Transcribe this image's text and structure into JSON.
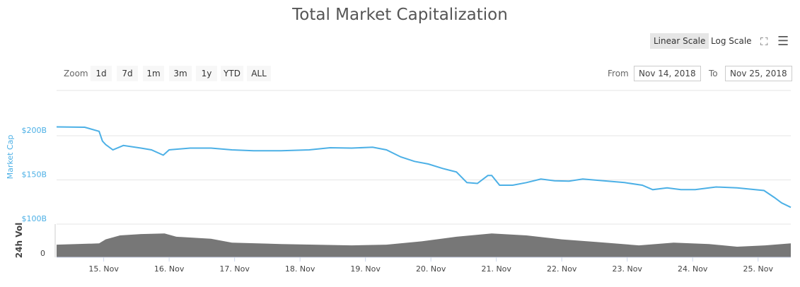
{
  "header": {
    "title": "Total Market Capitalization",
    "linear_scale": "Linear Scale",
    "log_scale": "Log Scale"
  },
  "zoom": {
    "label": "Zoom",
    "buttons": [
      "1d",
      "7d",
      "1m",
      "3m",
      "1y",
      "YTD",
      "ALL"
    ]
  },
  "range": {
    "from_label": "From",
    "from_value": "Nov 14, 2018",
    "to_label": "To",
    "to_value": "Nov 25, 2018"
  },
  "colors": {
    "line": "#4cb0e6",
    "volume": "#777777",
    "grid": "#e6e6e6"
  },
  "chart_data": {
    "type": "line",
    "title": "Total Market Capitalization",
    "ylabel": "Market Cap",
    "ylabel2": "24h Vol",
    "xlim": [
      14.28,
      25.5
    ],
    "ylim": [
      100,
      220
    ],
    "yticks": [
      {
        "v": 100,
        "label": "$100B"
      },
      {
        "v": 150,
        "label": "$150B"
      },
      {
        "v": 200,
        "label": "$200B"
      }
    ],
    "vol_tick": "0",
    "xticks": [
      {
        "v": 15,
        "label": "15. Nov"
      },
      {
        "v": 16,
        "label": "16. Nov"
      },
      {
        "v": 17,
        "label": "17. Nov"
      },
      {
        "v": 18,
        "label": "18. Nov"
      },
      {
        "v": 19,
        "label": "19. Nov"
      },
      {
        "v": 20,
        "label": "20. Nov"
      },
      {
        "v": 21,
        "label": "21. Nov"
      },
      {
        "v": 22,
        "label": "22. Nov"
      },
      {
        "v": 23,
        "label": "23. Nov"
      },
      {
        "v": 24,
        "label": "24. Nov"
      },
      {
        "v": 25,
        "label": "25. Nov"
      }
    ],
    "market_cap": [
      [
        14.28,
        210
      ],
      [
        14.71,
        209.6
      ],
      [
        14.93,
        205
      ],
      [
        14.98,
        194
      ],
      [
        15.03,
        190
      ],
      [
        15.14,
        184
      ],
      [
        15.3,
        189
      ],
      [
        15.57,
        186
      ],
      [
        15.73,
        184
      ],
      [
        15.91,
        178
      ],
      [
        16,
        184
      ],
      [
        16.32,
        186
      ],
      [
        16.64,
        186
      ],
      [
        16.96,
        184
      ],
      [
        17.29,
        183
      ],
      [
        17.71,
        183
      ],
      [
        18.14,
        184
      ],
      [
        18.46,
        186.4
      ],
      [
        18.79,
        186
      ],
      [
        19.11,
        187
      ],
      [
        19.32,
        184
      ],
      [
        19.54,
        176
      ],
      [
        19.75,
        171
      ],
      [
        19.96,
        168
      ],
      [
        20.18,
        163
      ],
      [
        20.39,
        159
      ],
      [
        20.55,
        147
      ],
      [
        20.71,
        146
      ],
      [
        20.87,
        155
      ],
      [
        20.93,
        155
      ],
      [
        21.05,
        144
      ],
      [
        21.25,
        144
      ],
      [
        21.46,
        147
      ],
      [
        21.68,
        151
      ],
      [
        21.89,
        149
      ],
      [
        22.11,
        148.6
      ],
      [
        22.32,
        151
      ],
      [
        22.64,
        149
      ],
      [
        22.96,
        147
      ],
      [
        23.23,
        144
      ],
      [
        23.39,
        139
      ],
      [
        23.61,
        141
      ],
      [
        23.82,
        139
      ],
      [
        24.04,
        139
      ],
      [
        24.25,
        141
      ],
      [
        24.36,
        142
      ],
      [
        24.68,
        141
      ],
      [
        25.09,
        138
      ],
      [
        25.25,
        130
      ],
      [
        25.36,
        124
      ],
      [
        25.5,
        119
      ]
    ],
    "volume_relative": [
      [
        14.28,
        19
      ],
      [
        14.93,
        21
      ],
      [
        15.03,
        27
      ],
      [
        15.25,
        33
      ],
      [
        15.57,
        35
      ],
      [
        15.93,
        36
      ],
      [
        16.11,
        31
      ],
      [
        16.64,
        28
      ],
      [
        16.96,
        22
      ],
      [
        17.71,
        20
      ],
      [
        18.79,
        18
      ],
      [
        19.32,
        19
      ],
      [
        19.86,
        24
      ],
      [
        20.39,
        31
      ],
      [
        20.93,
        36
      ],
      [
        21.46,
        33
      ],
      [
        22,
        27
      ],
      [
        22.54,
        23
      ],
      [
        23.18,
        18
      ],
      [
        23.71,
        22
      ],
      [
        24.25,
        20
      ],
      [
        24.68,
        16
      ],
      [
        25.11,
        18
      ],
      [
        25.5,
        21
      ]
    ],
    "volume_max": 50
  }
}
